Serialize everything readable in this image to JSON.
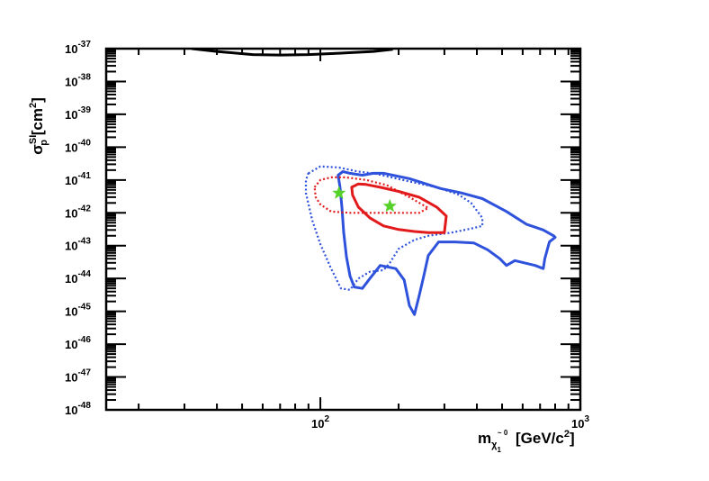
{
  "chart_data": {
    "type": "line",
    "xlabel": "m_{χ̃₁⁰} [GeV/c²]",
    "ylabel": "σ_p^{SI} [cm²]",
    "x_scale": "log",
    "y_scale": "log",
    "xlim": [
      15,
      1000
    ],
    "ylim": [
      1e-48,
      1e-37
    ],
    "x_tick_labels": [
      {
        "value": 100,
        "label": "10",
        "exp": "2"
      },
      {
        "value": 1000,
        "label": "10",
        "exp": "3"
      }
    ],
    "y_tick_labels": [
      {
        "value": 1e-37,
        "label": "10",
        "exp": "-37"
      },
      {
        "value": 1e-38,
        "label": "10",
        "exp": "-38"
      },
      {
        "value": 1e-39,
        "label": "10",
        "exp": "-39"
      },
      {
        "value": 1e-40,
        "label": "10",
        "exp": "-40"
      },
      {
        "value": 1e-41,
        "label": "10",
        "exp": "-41"
      },
      {
        "value": 1e-42,
        "label": "10",
        "exp": "-42"
      },
      {
        "value": 1e-43,
        "label": "10",
        "exp": "-43"
      },
      {
        "value": 1e-44,
        "label": "10",
        "exp": "-44"
      },
      {
        "value": 1e-45,
        "label": "10",
        "exp": "-45"
      },
      {
        "value": 1e-46,
        "label": "10",
        "exp": "-46"
      },
      {
        "value": 1e-47,
        "label": "10",
        "exp": "-47"
      },
      {
        "value": 1e-48,
        "label": "10",
        "exp": "-48"
      }
    ],
    "grid": false,
    "legend": "none",
    "series": [
      {
        "color": "#000000",
        "style": "solid",
        "closed": false,
        "points": [
          [
            32,
            1e-37
          ],
          [
            40,
            8.2e-38
          ],
          [
            55,
            6.6e-38
          ],
          [
            70,
            6.4e-38
          ],
          [
            90,
            6.6e-38
          ],
          [
            120,
            7.3e-38
          ],
          [
            160,
            8.2e-38
          ],
          [
            190,
            9.5e-38
          ]
        ]
      },
      {
        "color": "#2f52dc",
        "style": "solid",
        "closed": true,
        "points": [
          [
            117,
            1.4e-41
          ],
          [
            122,
            1.8e-41
          ],
          [
            130,
            1.6e-41
          ],
          [
            145,
            1.4e-41
          ],
          [
            160,
            1.6e-41
          ],
          [
            175,
            1.6e-41
          ],
          [
            220,
            1.1e-41
          ],
          [
            290,
            5.5e-42
          ],
          [
            350,
            4e-42
          ],
          [
            420,
            2.7e-42
          ],
          [
            520,
            1.1e-42
          ],
          [
            620,
            4.5e-43
          ],
          [
            720,
            3e-43
          ],
          [
            790,
            2e-43
          ],
          [
            800,
            1.8e-43
          ],
          [
            760,
            1.3e-43
          ],
          [
            730,
            4e-44
          ],
          [
            720,
            2e-44
          ],
          [
            670,
            2.5e-44
          ],
          [
            560,
            3.5e-44
          ],
          [
            520,
            2.5e-44
          ],
          [
            490,
            4e-44
          ],
          [
            440,
            7.5e-44
          ],
          [
            390,
            1.2e-43
          ],
          [
            330,
            1.3e-43
          ],
          [
            285,
            1.3e-43
          ],
          [
            260,
            5e-44
          ],
          [
            250,
            1.2e-44
          ],
          [
            240,
            3e-45
          ],
          [
            230,
            8e-46
          ],
          [
            220,
            1.5e-45
          ],
          [
            210,
            9e-45
          ],
          [
            195,
            2e-44
          ],
          [
            170,
            2.5e-44
          ],
          [
            155,
            1e-44
          ],
          [
            145,
            5e-45
          ],
          [
            135,
            5.5e-45
          ],
          [
            130,
            1.2e-44
          ],
          [
            126,
            4.5e-44
          ],
          [
            123,
            2.5e-43
          ],
          [
            121,
            1.5e-42
          ],
          [
            119,
            6e-42
          ],
          [
            117,
            1.4e-41
          ]
        ]
      },
      {
        "color": "#2f52dc",
        "style": "dotted",
        "closed": true,
        "points": [
          [
            90,
            1.6e-41
          ],
          [
            100,
            2.6e-41
          ],
          [
            118,
            2.4e-41
          ],
          [
            140,
            1.8e-41
          ],
          [
            160,
            1.6e-41
          ],
          [
            180,
            1.3e-41
          ],
          [
            220,
            9e-42
          ],
          [
            280,
            6e-42
          ],
          [
            340,
            3.6e-42
          ],
          [
            380,
            2e-42
          ],
          [
            420,
            7e-43
          ],
          [
            420,
            4e-43
          ],
          [
            380,
            3.3e-43
          ],
          [
            320,
            2.5e-43
          ],
          [
            260,
            2e-43
          ],
          [
            230,
            1.5e-43
          ],
          [
            200,
            8e-44
          ],
          [
            185,
            3e-44
          ],
          [
            175,
            1.8e-44
          ],
          [
            155,
            1.6e-44
          ],
          [
            140,
            1e-44
          ],
          [
            130,
            4.5e-45
          ],
          [
            120,
            5e-45
          ],
          [
            110,
            2e-44
          ],
          [
            100,
            1.1e-43
          ],
          [
            93,
            6e-43
          ],
          [
            88,
            4e-42
          ],
          [
            88,
            1e-41
          ],
          [
            90,
            1.6e-41
          ]
        ]
      },
      {
        "color": "#e31a1c",
        "style": "solid",
        "closed": true,
        "points": [
          [
            132,
            6e-42
          ],
          [
            140,
            7.6e-42
          ],
          [
            150,
            7.3e-42
          ],
          [
            170,
            6e-42
          ],
          [
            200,
            4.5e-42
          ],
          [
            240,
            3e-42
          ],
          [
            280,
            1.5e-42
          ],
          [
            305,
            8e-43
          ],
          [
            300,
            2.5e-43
          ],
          [
            260,
            2.5e-43
          ],
          [
            230,
            2.7e-43
          ],
          [
            200,
            3.1e-43
          ],
          [
            175,
            4e-43
          ],
          [
            155,
            7e-43
          ],
          [
            140,
            1.5e-42
          ],
          [
            133,
            3.5e-42
          ],
          [
            132,
            6e-42
          ]
        ]
      },
      {
        "color": "#e31a1c",
        "style": "dotted",
        "closed": true,
        "points": [
          [
            95,
            6e-42
          ],
          [
            100,
            1e-41
          ],
          [
            110,
            1.2e-41
          ],
          [
            125,
            1.2e-41
          ],
          [
            150,
            1e-41
          ],
          [
            180,
            7e-42
          ],
          [
            220,
            3e-42
          ],
          [
            260,
            1.4e-42
          ],
          [
            240,
            1e-42
          ],
          [
            200,
            1e-42
          ],
          [
            160,
            1e-42
          ],
          [
            130,
            1e-42
          ],
          [
            110,
            1.1e-42
          ],
          [
            100,
            1.8e-42
          ],
          [
            96,
            3e-42
          ],
          [
            95,
            6e-42
          ]
        ]
      }
    ],
    "markers": [
      {
        "x": 118,
        "y": 4e-42,
        "color": "#56d12a",
        "symbol": "star"
      },
      {
        "x": 185,
        "y": 1.6e-42,
        "color": "#56d12a",
        "symbol": "star"
      }
    ]
  }
}
